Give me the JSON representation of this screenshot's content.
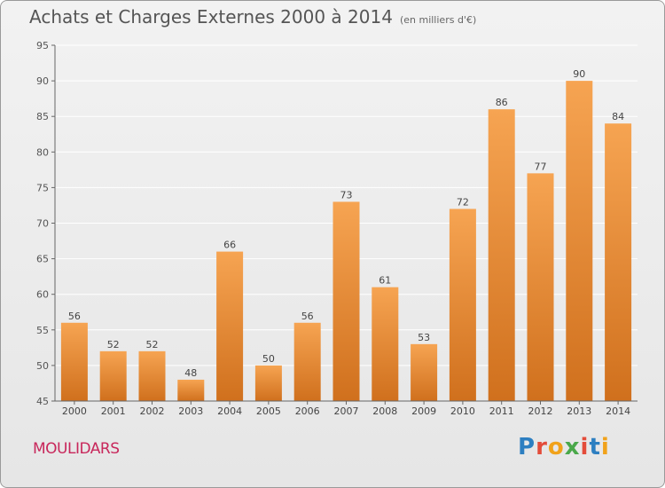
{
  "header": {
    "title": "Achats et Charges Externes 2000 à 2014",
    "unit": "(en milliers d'€)"
  },
  "footer": {
    "place": "MOULIDARS",
    "logo": "Proxiti"
  },
  "colors": {
    "bar": "#f0923b",
    "barDark": "#d3731f",
    "axis": "#666666",
    "grid": "#ffffff",
    "place": "#c8275b"
  },
  "logo_colors": [
    "#2d7fc1",
    "#e34c3a",
    "#f1a21a",
    "#4aa84a",
    "#e34c3a",
    "#2d7fc1",
    "#f1a21a"
  ],
  "chart_data": {
    "type": "bar",
    "title": "Achats et Charges Externes 2000 à 2014",
    "subtitle": "(en milliers d'€)",
    "categories": [
      "2000",
      "2001",
      "2002",
      "2003",
      "2004",
      "2005",
      "2006",
      "2007",
      "2008",
      "2009",
      "2010",
      "2011",
      "2012",
      "2013",
      "2014"
    ],
    "values": [
      56,
      52,
      52,
      48,
      66,
      50,
      56,
      73,
      61,
      53,
      72,
      86,
      77,
      90,
      84
    ],
    "ylim": [
      45,
      95
    ],
    "yticks": [
      45,
      50,
      55,
      60,
      65,
      70,
      75,
      80,
      85,
      90,
      95
    ],
    "grid": true,
    "xlabel": "",
    "ylabel": ""
  }
}
